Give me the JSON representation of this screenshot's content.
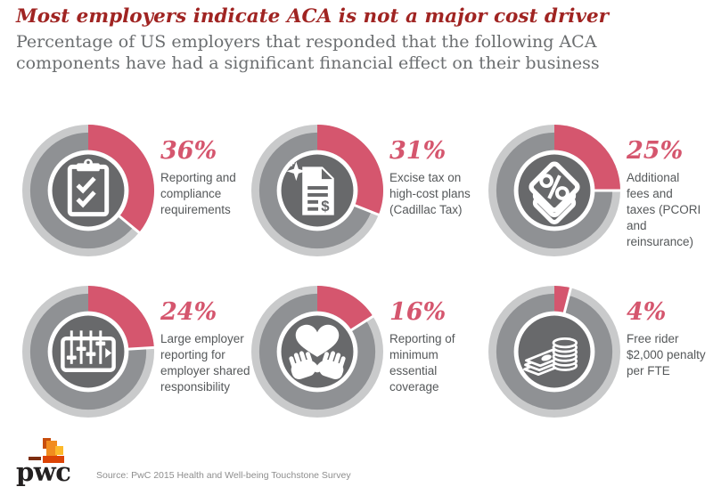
{
  "header": {
    "title": "Most employers indicate ACA is not a major cost driver",
    "subtitle": "Percentage of US employers that responded that the following ACA\ncomponents have had a significant financial effect on their business"
  },
  "chart_data": {
    "type": "pie",
    "variant": "donut-grid",
    "title": "Most employers indicate ACA is not a major cost driver",
    "subtitle": "Percentage of US employers that responded that the following ACA components have had a significant financial effect on their business",
    "categories": [
      "Reporting and compliance requirements",
      "Excise tax on high-cost plans (Cadillac Tax)",
      "Additional fees and taxes (PCORI and reinsurance)",
      "Large employer reporting for employer shared responsibility",
      "Reporting of minimum essential coverage",
      "Free rider $2,000 penalty per FTE"
    ],
    "values": [
      36,
      31,
      25,
      24,
      16,
      4
    ],
    "unit": "%",
    "arc_start": "12 o'clock, clockwise",
    "legend_position": "right of each donut",
    "source": "PwC 2015 Health and Well-being Touchstone Survey"
  },
  "cards": [
    {
      "pct_label": "36%",
      "label": "Reporting and\ncompliance\nrequirements",
      "icon": "clipboard-checklist-icon"
    },
    {
      "pct_label": "31%",
      "label": "Excise tax on\nhigh-cost plans\n(Cadillac Tax)",
      "icon": "taxed-document-icon"
    },
    {
      "pct_label": "25%",
      "label": "Additional\nfees and\ntaxes (PCORI\nand\nreinsurance)",
      "icon": "percent-stack-icon"
    },
    {
      "pct_label": "24%",
      "label": "Large employer\nreporting for\nemployer shared\nresponsibility",
      "icon": "sliders-panel-icon"
    },
    {
      "pct_label": "16%",
      "label": "Reporting of\nminimum\nessential\ncoverage",
      "icon": "hands-heart-icon"
    },
    {
      "pct_label": "4%",
      "label": "Free rider\n$2,000 penalty\nper FTE",
      "icon": "money-stack-icon"
    }
  ],
  "footer": {
    "logo_text": "pwc",
    "source": "Source:  PwC 2015 Health and Well-being Touchstone Survey"
  },
  "colors": {
    "accent_pink": "#d5566e",
    "title_red": "#a02422",
    "ring_light": "#c9cacb",
    "ring_mid": "#8f9194",
    "hub_gray": "#68696b",
    "text_gray": "#55585a",
    "subtitle_gray": "#6b6e70",
    "source_gray": "#8e8e8e"
  }
}
